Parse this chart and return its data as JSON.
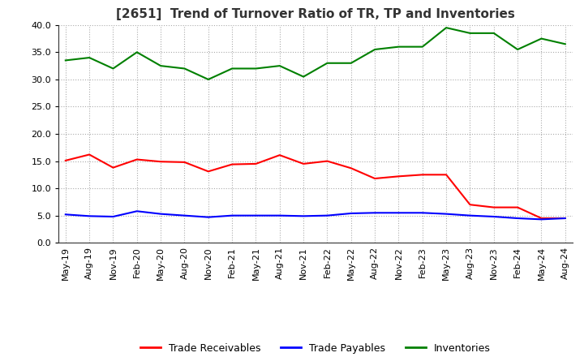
{
  "title": "[2651]  Trend of Turnover Ratio of TR, TP and Inventories",
  "xlabels": [
    "May-19",
    "Aug-19",
    "Nov-19",
    "Feb-20",
    "May-20",
    "Aug-20",
    "Nov-20",
    "Feb-21",
    "May-21",
    "Aug-21",
    "Nov-21",
    "Feb-22",
    "May-22",
    "Aug-22",
    "Nov-22",
    "Feb-23",
    "May-23",
    "Aug-23",
    "Nov-23",
    "Feb-24",
    "May-24",
    "Aug-24"
  ],
  "trade_receivables": [
    15.1,
    16.2,
    13.8,
    15.3,
    14.9,
    14.8,
    13.1,
    14.4,
    14.5,
    16.1,
    14.5,
    15.0,
    13.7,
    11.8,
    12.2,
    12.5,
    12.5,
    7.0,
    6.5,
    6.5,
    4.5,
    4.5
  ],
  "trade_payables": [
    5.2,
    4.9,
    4.8,
    5.8,
    5.3,
    5.0,
    4.7,
    5.0,
    5.0,
    5.0,
    4.9,
    5.0,
    5.4,
    5.5,
    5.5,
    5.5,
    5.3,
    5.0,
    4.8,
    4.5,
    4.3,
    4.5
  ],
  "inventories": [
    33.5,
    34.0,
    32.0,
    35.0,
    32.5,
    32.0,
    30.0,
    32.0,
    32.0,
    32.5,
    30.5,
    33.0,
    33.0,
    35.5,
    36.0,
    36.0,
    39.5,
    38.5,
    38.5,
    35.5,
    37.5,
    36.5
  ],
  "tr_color": "#ff0000",
  "tp_color": "#0000ff",
  "inv_color": "#008000",
  "ylim": [
    0.0,
    40.0
  ],
  "yticks": [
    0.0,
    5.0,
    10.0,
    15.0,
    20.0,
    25.0,
    30.0,
    35.0,
    40.0
  ],
  "legend_labels": [
    "Trade Receivables",
    "Trade Payables",
    "Inventories"
  ],
  "background_color": "#ffffff",
  "grid_color": "#aaaaaa",
  "title_fontsize": 11,
  "tick_fontsize": 8,
  "legend_fontsize": 9,
  "linewidth": 1.5
}
